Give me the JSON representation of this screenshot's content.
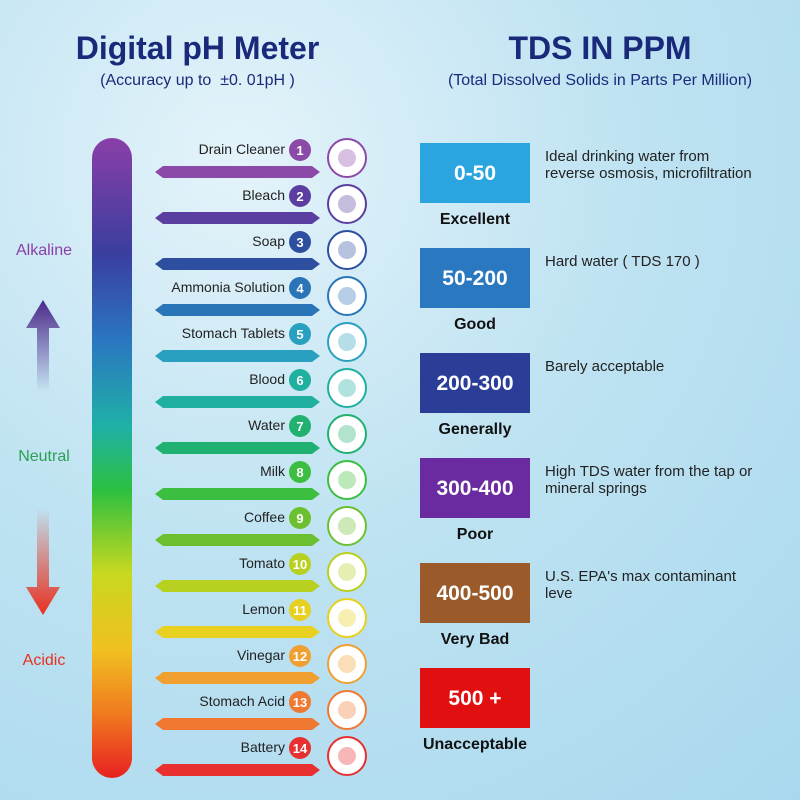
{
  "ph": {
    "title": "Digital pH Meter",
    "subtitle": "(Accuracy up to  ±0. 01pH )",
    "labels": [
      "Alkaline",
      "Neutral",
      "Acidic"
    ],
    "items": [
      {
        "label": "Drain Cleaner",
        "number": 1
      },
      {
        "label": "Bleach",
        "number": 2
      },
      {
        "label": "Soap",
        "number": 3
      },
      {
        "label": "Ammonia Solution",
        "number": 4
      },
      {
        "label": "Stomach Tablets",
        "number": 5
      },
      {
        "label": "Blood",
        "number": 6
      },
      {
        "label": "Water",
        "number": 7
      },
      {
        "label": "Milk",
        "number": 8
      },
      {
        "label": "Coffee",
        "number": 9
      },
      {
        "label": "Tomato",
        "number": 10
      },
      {
        "label": "Lemon",
        "number": 11
      },
      {
        "label": "Vinegar",
        "number": 12
      },
      {
        "label": "Stomach Acid",
        "number": 13
      },
      {
        "label": "Battery",
        "number": 14
      }
    ]
  },
  "tds": {
    "title": "TDS IN PPM",
    "subtitle": "(Total Dissolved Solids in Parts Per Million)",
    "levels": [
      {
        "range": "0-50",
        "rating": "Excellent",
        "description": "Ideal drinking water from reverse osmosis, microfiltration"
      },
      {
        "range": "50-200",
        "rating": "Good",
        "description": "Hard water ( TDS 170 )"
      },
      {
        "range": "200-300",
        "rating": "Generally",
        "description": "Barely acceptable"
      },
      {
        "range": "300-400",
        "rating": "Poor",
        "description": "High TDS water from the tap or mineral springs"
      },
      {
        "range": "400-500",
        "rating": "Very Bad",
        "description": "U.S. EPA's max contaminant leve"
      },
      {
        "range": "500 +",
        "rating": "Unacceptable",
        "description": ""
      }
    ]
  }
}
